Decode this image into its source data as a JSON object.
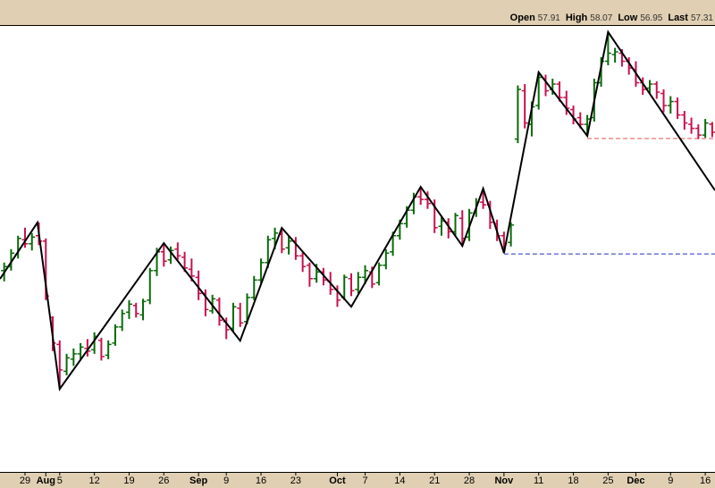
{
  "chart_data": {
    "type": "ohlc",
    "ohlc_labels": [
      "Open",
      "High",
      "Low",
      "Last"
    ],
    "up_color": "#0a6a0a",
    "down_color": "#c8104c",
    "xlim": [
      -0.6,
      102.4
    ],
    "ylim": [
      32,
      65.3
    ],
    "xticks": [
      {
        "value": 3,
        "label": "29"
      },
      {
        "value": 8,
        "label": "5"
      },
      {
        "value": 13,
        "label": "12"
      },
      {
        "value": 18,
        "label": "19"
      },
      {
        "value": 23,
        "label": "26"
      },
      {
        "value": 32,
        "label": "9"
      },
      {
        "value": 37,
        "label": "16"
      },
      {
        "value": 42,
        "label": "23"
      },
      {
        "value": 52,
        "label": "7"
      },
      {
        "value": 57,
        "label": "14"
      },
      {
        "value": 62,
        "label": "21"
      },
      {
        "value": 67,
        "label": "28"
      },
      {
        "value": 77,
        "label": "11"
      },
      {
        "value": 82,
        "label": "18"
      },
      {
        "value": 87,
        "label": "25"
      },
      {
        "value": 96,
        "label": "9"
      },
      {
        "value": 101,
        "label": "16"
      }
    ],
    "month_ticks": [
      {
        "value": 6,
        "label": "Aug"
      },
      {
        "value": 28,
        "label": "Sep"
      },
      {
        "value": 48,
        "label": "Oct"
      },
      {
        "value": 72,
        "label": "Nov"
      },
      {
        "value": 91,
        "label": "Dec"
      }
    ],
    "open": [
      47.0,
      47.3,
      48.2,
      49.3,
      49.0,
      49.6,
      49.2,
      43.5,
      41.5,
      39.5,
      40.4,
      40.8,
      41.2,
      41.1,
      41.8,
      40.7,
      41.6,
      42.8,
      43.9,
      44.4,
      43.7,
      44.8,
      47.0,
      48.4,
      47.8,
      48.6,
      48.0,
      47.1,
      46.5,
      45.3,
      44.0,
      44.8,
      43.2,
      42.7,
      44.2,
      43.2,
      45.0,
      46.3,
      47.6,
      49.4,
      49.7,
      48.7,
      49.2,
      48.1,
      47.4,
      46.4,
      46.9,
      46.2,
      45.6,
      45.0,
      46.4,
      45.6,
      46.5,
      46.9,
      46.1,
      47.4,
      48.4,
      49.6,
      50.5,
      51.5,
      52.5,
      52.3,
      52.0,
      50.3,
      50.6,
      49.9,
      50.9,
      49.5,
      51.3,
      52.1,
      51.9,
      50.5,
      49.6,
      49.1,
      56.8,
      60.4,
      57.9,
      59.3,
      61.3,
      60.5,
      60.9,
      59.9,
      59.0,
      58.4,
      57.9,
      58.4,
      61.0,
      62.6,
      63.1,
      63.2,
      62.6,
      62.0,
      61.0,
      60.6,
      60.9,
      60.2,
      59.3,
      59.6,
      58.6,
      57.9,
      57.6,
      57.1,
      57.91
    ],
    "high": [
      47.6,
      48.6,
      49.6,
      50.2,
      49.8,
      50.6,
      49.4,
      43.6,
      41.8,
      40.8,
      41.2,
      41.6,
      41.9,
      42.4,
      42.0,
      41.8,
      43.0,
      44.1,
      44.8,
      44.6,
      44.9,
      47.2,
      48.7,
      49.0,
      48.8,
      49.1,
      48.4,
      47.9,
      47.0,
      45.6,
      45.2,
      45.0,
      43.5,
      44.6,
      44.6,
      45.3,
      46.6,
      47.9,
      49.6,
      50.2,
      50.0,
      49.6,
      49.5,
      48.4,
      47.6,
      47.5,
      47.2,
      46.9,
      45.9,
      46.7,
      46.8,
      46.9,
      47.4,
      47.3,
      47.6,
      48.6,
      49.9,
      50.8,
      51.8,
      52.8,
      53.2,
      52.9,
      52.3,
      51.0,
      50.9,
      51.3,
      51.5,
      51.6,
      52.4,
      53.1,
      52.2,
      50.8,
      49.9,
      50.6,
      60.8,
      60.9,
      59.6,
      61.8,
      61.6,
      61.3,
      61.1,
      60.4,
      59.3,
      58.8,
      58.6,
      61.3,
      62.9,
      64.8,
      63.6,
      63.5,
      62.9,
      62.6,
      61.4,
      61.2,
      61.1,
      60.5,
      60.0,
      59.9,
      58.9,
      58.4,
      57.9,
      58.3,
      58.07
    ],
    "low": [
      46.2,
      47.0,
      47.9,
      48.7,
      48.5,
      48.9,
      44.8,
      41.0,
      38.2,
      39.2,
      39.9,
      40.3,
      40.6,
      40.8,
      40.3,
      40.4,
      41.4,
      42.5,
      43.4,
      43.5,
      43.3,
      44.5,
      46.6,
      47.3,
      47.5,
      47.8,
      46.9,
      46.2,
      44.8,
      43.6,
      43.8,
      42.9,
      41.9,
      42.4,
      42.8,
      43.0,
      44.8,
      46.0,
      47.2,
      48.6,
      48.3,
      48.2,
      47.8,
      46.9,
      45.8,
      46.1,
      45.9,
      45.2,
      44.3,
      44.8,
      45.1,
      45.3,
      46.0,
      45.7,
      45.9,
      47.1,
      48.1,
      49.3,
      50.2,
      51.2,
      51.9,
      51.6,
      49.8,
      49.6,
      49.4,
      49.6,
      48.8,
      49.2,
      51.0,
      51.6,
      50.1,
      49.2,
      48.3,
      48.8,
      56.5,
      57.6,
      57.0,
      59.0,
      60.0,
      60.1,
      59.6,
      58.6,
      57.9,
      57.6,
      57.0,
      58.1,
      60.7,
      62.3,
      62.5,
      62.2,
      61.6,
      60.7,
      60.1,
      60.2,
      59.8,
      58.8,
      58.7,
      58.3,
      57.5,
      57.2,
      56.8,
      56.9,
      56.95
    ],
    "close": [
      47.3,
      48.3,
      49.4,
      49.0,
      49.5,
      49.2,
      45.1,
      41.6,
      39.6,
      40.5,
      40.8,
      41.3,
      41.0,
      42.1,
      40.6,
      41.5,
      42.8,
      43.8,
      44.5,
      43.8,
      44.7,
      47.0,
      48.4,
      47.7,
      48.5,
      48.1,
      47.2,
      46.6,
      45.3,
      44.1,
      44.9,
      43.3,
      42.6,
      44.3,
      43.1,
      45.0,
      46.3,
      47.6,
      49.3,
      49.8,
      48.6,
      49.2,
      48.1,
      47.3,
      46.4,
      46.9,
      46.3,
      45.6,
      44.8,
      46.5,
      45.5,
      46.5,
      47.0,
      46.0,
      47.4,
      48.3,
      49.6,
      50.5,
      51.5,
      52.5,
      52.3,
      52.0,
      50.2,
      50.7,
      49.9,
      51.1,
      49.4,
      51.3,
      52.1,
      51.9,
      50.6,
      49.6,
      49.0,
      50.4,
      60.5,
      58.0,
      59.2,
      61.4,
      60.4,
      60.9,
      59.9,
      59.1,
      58.3,
      57.9,
      58.3,
      61.0,
      62.6,
      63.2,
      63.3,
      62.6,
      62.1,
      61.0,
      60.5,
      60.9,
      60.3,
      59.3,
      59.6,
      58.6,
      58.0,
      57.6,
      57.1,
      58.0,
      57.31
    ],
    "zigzag": {
      "color": "#000000",
      "x": [
        -0.6,
        4.8,
        8,
        23,
        34,
        40,
        50,
        60,
        66,
        69,
        72,
        77,
        84,
        87,
        102.4
      ],
      "y": [
        46.38,
        50.58,
        38.18,
        49.04,
        41.78,
        50.18,
        44.31,
        53.24,
        48.84,
        53.11,
        48.31,
        61.78,
        57.04,
        64.78,
        52.98
      ]
    },
    "levels": [
      {
        "value": 56.84,
        "start": 84,
        "color": "#e05050"
      },
      {
        "value": 48.24,
        "start": 72,
        "color": "#2030c0"
      }
    ]
  }
}
